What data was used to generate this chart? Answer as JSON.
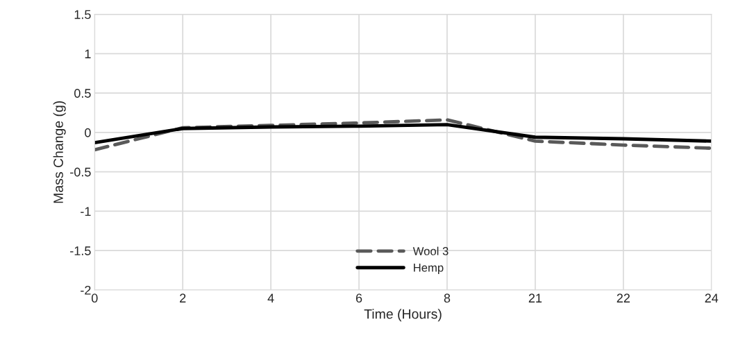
{
  "chart_data": {
    "type": "line",
    "xlabel": "Time (Hours)",
    "ylabel": "Mass Change (g)",
    "categories": [
      "0",
      "2",
      "4",
      "6",
      "8",
      "21",
      "22",
      "24"
    ],
    "series": [
      {
        "name": "Wool 3",
        "color": "#595959",
        "line_style": "dashed",
        "values": [
          -0.22,
          0.06,
          0.09,
          0.12,
          0.16,
          -0.11,
          -0.16,
          -0.2
        ]
      },
      {
        "name": "Hemp",
        "color": "#000000",
        "line_style": "solid",
        "values": [
          -0.13,
          0.05,
          0.07,
          0.08,
          0.1,
          -0.06,
          -0.08,
          -0.11
        ]
      }
    ],
    "ylim": [
      -2,
      1.5
    ],
    "yticks": [
      -2,
      -1.5,
      -1,
      -0.5,
      0,
      0.5,
      1,
      1.5
    ],
    "grid": true,
    "legend": "bottom",
    "marker": "none"
  }
}
